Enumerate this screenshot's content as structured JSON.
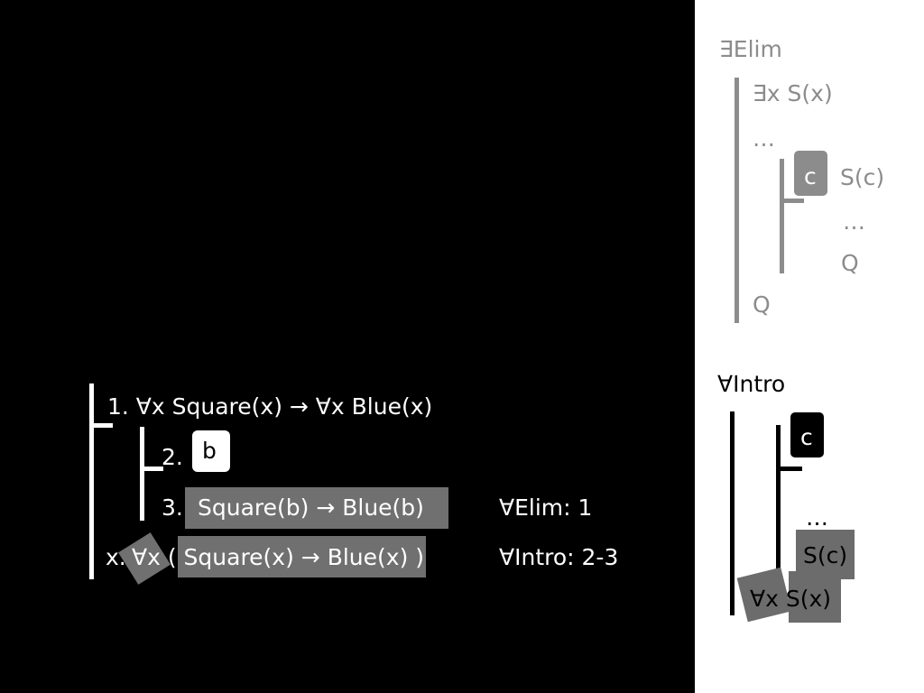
{
  "main": {
    "line1": "1. ∀x Square(x) → ∀x Blue(x)",
    "line2_num": "2.",
    "line2_box": "b",
    "line3_num": "3.",
    "line3_formula": "Square(b) → Blue(b)",
    "line3_just": "∀Elim: 1",
    "linex_num": "x.",
    "linex_formula": "∀x ( Square(x) → Blue(x) )",
    "linex_just": "∀Intro: 2-3"
  },
  "side": {
    "exists_elim": {
      "title": "∃Elim",
      "premise": "∃x S(x)",
      "dots1": "…",
      "box": "c",
      "assume": "S(c)",
      "dots2": "…",
      "inner_q": "Q",
      "outer_q": "Q"
    },
    "forall_intro": {
      "title": "∀Intro",
      "box": "c",
      "dots": "…",
      "sc": "S(c)",
      "conclusion": "∀x S(x)"
    }
  },
  "colors": {
    "background": "#000000",
    "side_panel": "#ffffff",
    "grey_text": "#8c8c8c",
    "highlight": "#707070"
  }
}
